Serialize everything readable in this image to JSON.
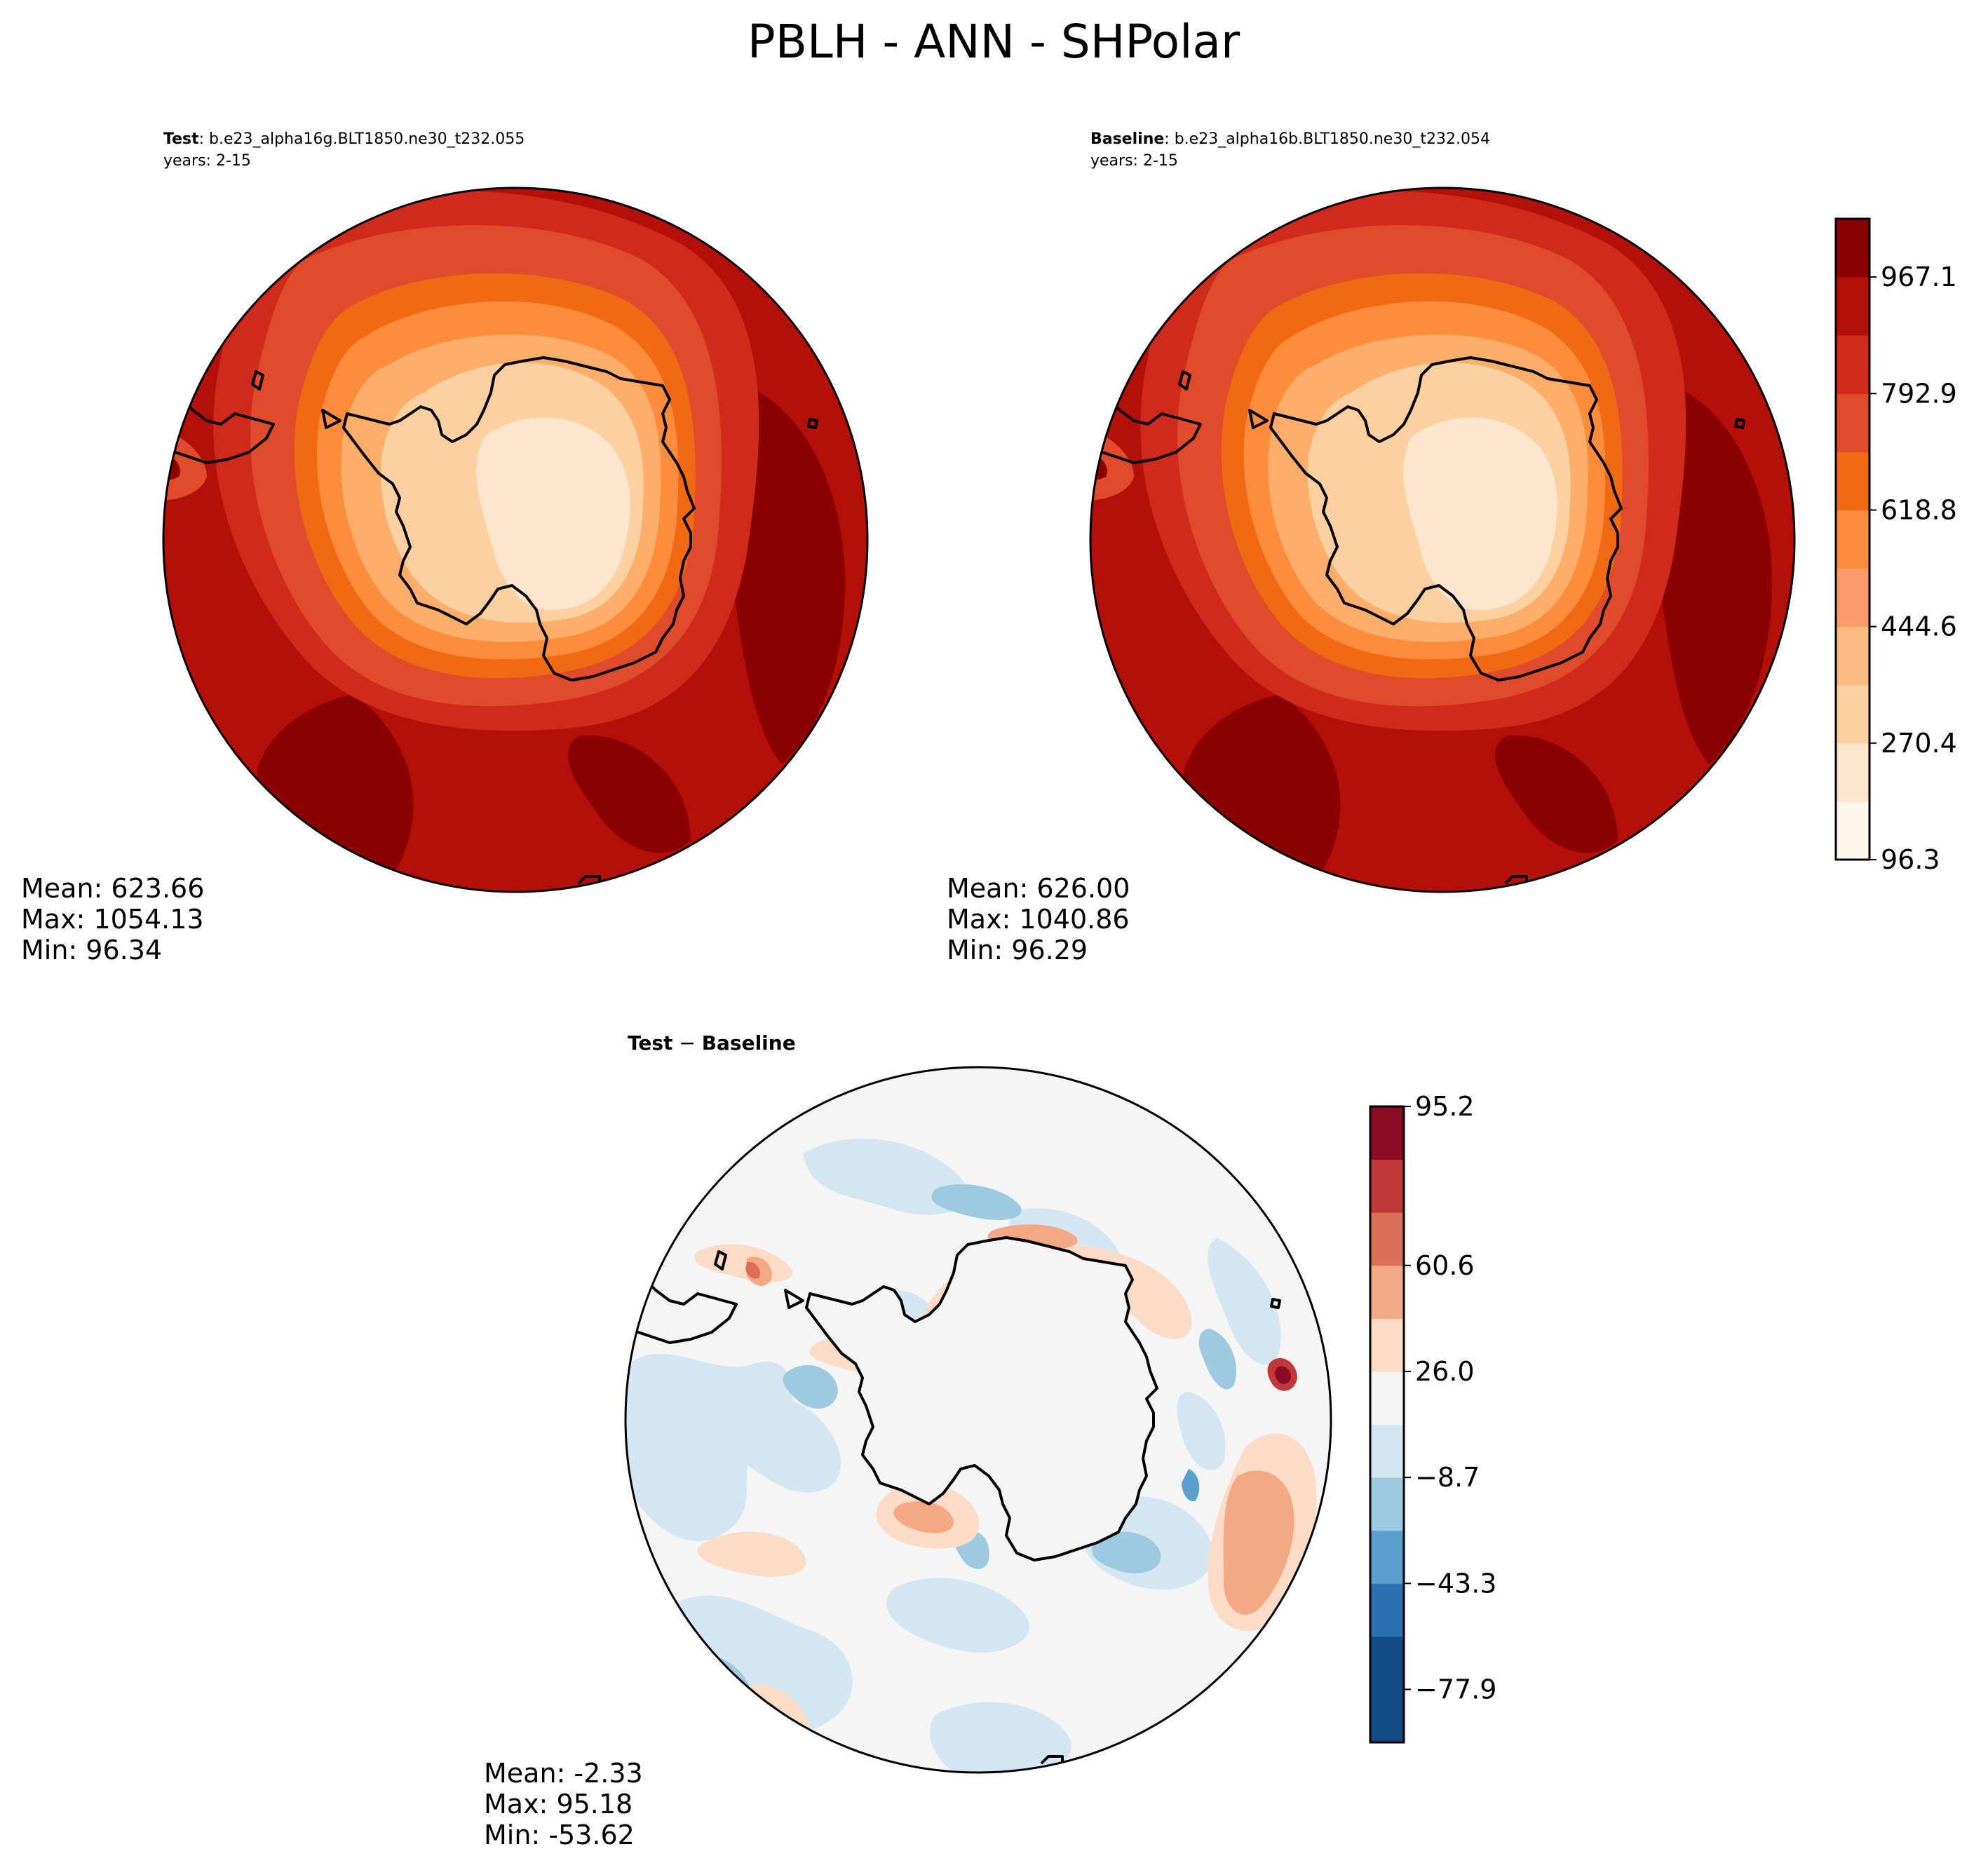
{
  "figure": {
    "title": "PBLH - ANN - SHPolar"
  },
  "colors": {
    "reds": [
      "#fff5eb",
      "#fee6ce",
      "#fdd0a2",
      "#fdae6b",
      "#fd8d3c",
      "#f16913",
      "#e04b2b",
      "#cf2a1c",
      "#b50f0a",
      "#8b0000"
    ],
    "diff": [
      "#134b87",
      "#2a71b2",
      "#5aa1cf",
      "#9dcae1",
      "#d4e6f1",
      "#f5f5f5",
      "#fcdcc6",
      "#f5a886",
      "#dc6f58",
      "#c0383a",
      "#8a0b25"
    ],
    "coast": "#000000"
  },
  "chart_data": [
    {
      "type": "heatmap",
      "name_bold": "Test",
      "name_rest": ": b.e23_alpha16g.BLT1850.ne30_t232.055",
      "years": "years: 2-15",
      "projection": "south polar stereographic",
      "stats": {
        "mean": "Mean: 623.66",
        "max": "Max: 1054.13",
        "min": "Min: 96.34"
      },
      "value_range": [
        96.34,
        1054.13
      ]
    },
    {
      "type": "heatmap",
      "name_bold": "Baseline",
      "name_rest": ": b.e23_alpha16b.BLT1850.ne30_t232.054",
      "years": "years: 2-15",
      "projection": "south polar stereographic",
      "stats": {
        "mean": "Mean: 626.00",
        "max": "Max: 1040.86",
        "min": "Min: 96.29"
      },
      "value_range": [
        96.29,
        1040.86
      ],
      "colorbar": {
        "ticks": [
          "96.3",
          "270.4",
          "444.6",
          "618.8",
          "792.9",
          "967.1"
        ],
        "levels": 11,
        "range": [
          96.3,
          1054.1
        ]
      }
    },
    {
      "type": "heatmap",
      "title_bold": "Test",
      "title_sep": " − ",
      "title_bold2": "Baseline",
      "projection": "south polar stereographic",
      "stats": {
        "mean": "Mean: -2.33",
        "max": "Max: 95.18",
        "min": "Min: -53.62"
      },
      "value_range": [
        -53.62,
        95.18
      ],
      "colorbar": {
        "ticks": [
          "−77.9",
          "−43.3",
          "−8.7",
          "26.0",
          "60.6",
          "95.2"
        ],
        "levels": 12,
        "range": [
          -95.2,
          95.2
        ]
      }
    }
  ]
}
